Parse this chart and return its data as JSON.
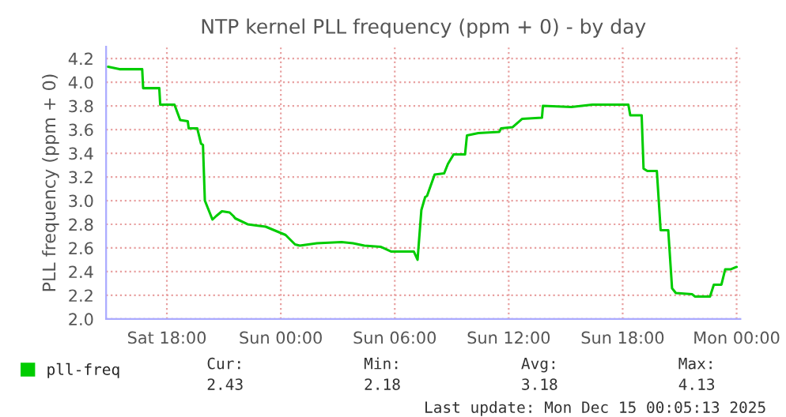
{
  "chart_data": {
    "type": "line",
    "title": "NTP kernel PLL frequency (ppm + 0) - by day",
    "ylabel": "PLL frequency (ppm + 0)",
    "series": [
      {
        "name": "pll-freq",
        "color": "#00cc00",
        "x": [
          "2025-12-13T14:54",
          "2025-12-13T15:30",
          "2025-12-13T16:42",
          "2025-12-13T16:45",
          "2025-12-13T17:36",
          "2025-12-13T17:39",
          "2025-12-13T18:24",
          "2025-12-13T18:42",
          "2025-12-13T19:06",
          "2025-12-13T19:09",
          "2025-12-13T19:36",
          "2025-12-13T19:48",
          "2025-12-13T19:54",
          "2025-12-13T20:00",
          "2025-12-13T20:24",
          "2025-12-13T20:36",
          "2025-12-13T20:54",
          "2025-12-13T21:18",
          "2025-12-13T21:30",
          "2025-12-13T21:36",
          "2025-12-13T22:15",
          "2025-12-13T22:42",
          "2025-12-13T23:12",
          "2025-12-14T00:15",
          "2025-12-14T00:45",
          "2025-12-14T01:00",
          "2025-12-14T01:54",
          "2025-12-14T03:12",
          "2025-12-14T03:48",
          "2025-12-14T04:24",
          "2025-12-14T05:15",
          "2025-12-14T05:48",
          "2025-12-14T07:00",
          "2025-12-14T07:12",
          "2025-12-14T07:24",
          "2025-12-14T07:36",
          "2025-12-14T07:42",
          "2025-12-14T08:06",
          "2025-12-14T08:36",
          "2025-12-14T08:48",
          "2025-12-14T09:06",
          "2025-12-14T09:42",
          "2025-12-14T09:48",
          "2025-12-14T10:24",
          "2025-12-14T11:30",
          "2025-12-14T11:36",
          "2025-12-14T12:12",
          "2025-12-14T12:42",
          "2025-12-14T13:45",
          "2025-12-14T13:48",
          "2025-12-14T15:18",
          "2025-12-14T16:24",
          "2025-12-14T18:18",
          "2025-12-14T18:24",
          "2025-12-14T19:00",
          "2025-12-14T19:06",
          "2025-12-14T19:18",
          "2025-12-14T19:48",
          "2025-12-14T20:00",
          "2025-12-14T20:24",
          "2025-12-14T20:36",
          "2025-12-14T20:48",
          "2025-12-14T21:39",
          "2025-12-14T21:48",
          "2025-12-14T22:36",
          "2025-12-14T22:48",
          "2025-12-14T23:12",
          "2025-12-14T23:24",
          "2025-12-14T23:42",
          "2025-12-15T00:00"
        ],
        "values": [
          4.13,
          4.11,
          4.11,
          3.95,
          3.95,
          3.81,
          3.81,
          3.68,
          3.67,
          3.61,
          3.61,
          3.48,
          3.47,
          3.0,
          2.84,
          2.87,
          2.91,
          2.9,
          2.87,
          2.85,
          2.8,
          2.79,
          2.78,
          2.71,
          2.63,
          2.62,
          2.64,
          2.65,
          2.64,
          2.62,
          2.61,
          2.57,
          2.57,
          2.5,
          2.92,
          3.03,
          3.04,
          3.22,
          3.23,
          3.31,
          3.39,
          3.39,
          3.55,
          3.57,
          3.58,
          3.61,
          3.62,
          3.69,
          3.7,
          3.8,
          3.79,
          3.81,
          3.81,
          3.72,
          3.72,
          3.27,
          3.25,
          3.25,
          2.75,
          2.75,
          2.26,
          2.22,
          2.21,
          2.19,
          2.19,
          2.29,
          2.29,
          2.42,
          2.42,
          2.44
        ]
      }
    ],
    "xlim": [
      "2025-12-13T14:48",
      "2025-12-15T00:12"
    ],
    "xticks": [
      {
        "value": "2025-12-13T18:00",
        "label": "Sat 18:00"
      },
      {
        "value": "2025-12-14T00:00",
        "label": "Sun 00:00"
      },
      {
        "value": "2025-12-14T06:00",
        "label": "Sun 06:00"
      },
      {
        "value": "2025-12-14T12:00",
        "label": "Sun 12:00"
      },
      {
        "value": "2025-12-14T18:00",
        "label": "Sun 18:00"
      },
      {
        "value": "2025-12-15T00:00",
        "label": "Mon 00:00"
      }
    ],
    "ylim": [
      2.0,
      4.3
    ],
    "yticks": [
      {
        "value": 2.0,
        "label": "2.0"
      },
      {
        "value": 2.2,
        "label": "2.2"
      },
      {
        "value": 2.4,
        "label": "2.4"
      },
      {
        "value": 2.6,
        "label": "2.6"
      },
      {
        "value": 2.8,
        "label": "2.8"
      },
      {
        "value": 3.0,
        "label": "3.0"
      },
      {
        "value": 3.2,
        "label": "3.2"
      },
      {
        "value": 3.4,
        "label": "3.4"
      },
      {
        "value": 3.6,
        "label": "3.6"
      },
      {
        "value": 3.8,
        "label": "3.8"
      },
      {
        "value": 4.0,
        "label": "4.0"
      },
      {
        "value": 4.2,
        "label": "4.2"
      }
    ],
    "grid": true,
    "legend": "bottom left",
    "marker": "none",
    "line_style": "solid",
    "annotations": [
      "Cur:",
      "Min:",
      "Avg:",
      "Max:",
      "2.43",
      "2.18",
      "3.18",
      "4.13",
      "Last update: Mon Dec 15 00:05:13 2025"
    ]
  }
}
